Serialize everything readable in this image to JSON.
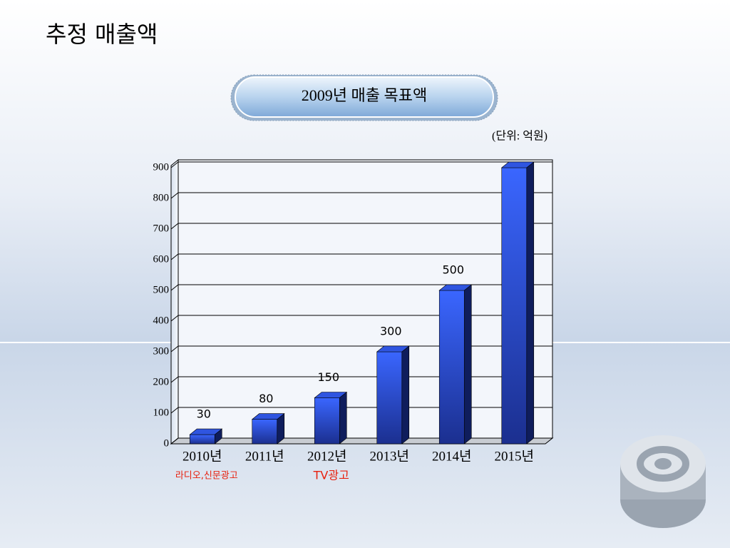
{
  "title": "추정 매출액",
  "chart_data": {
    "type": "bar3d",
    "title": "2009년 매출 목표액",
    "unit_label": "(단위: 억원)",
    "categories": [
      "2010년",
      "2011년",
      "2012년",
      "2013년",
      "2014년",
      "2015년"
    ],
    "values": [
      30,
      80,
      150,
      300,
      500,
      900
    ],
    "value_labels": [
      "30",
      "80",
      "150",
      "300",
      "500",
      null
    ],
    "color": "#2f55e0",
    "ylim": [
      0,
      900
    ],
    "yticks": [
      0,
      100,
      200,
      300,
      400,
      500,
      600,
      700,
      800,
      900
    ],
    "grid": true,
    "annotations": [
      {
        "category": 0,
        "text": "라디오,신문광고"
      },
      {
        "category": 2,
        "text": "TV광고"
      }
    ]
  }
}
